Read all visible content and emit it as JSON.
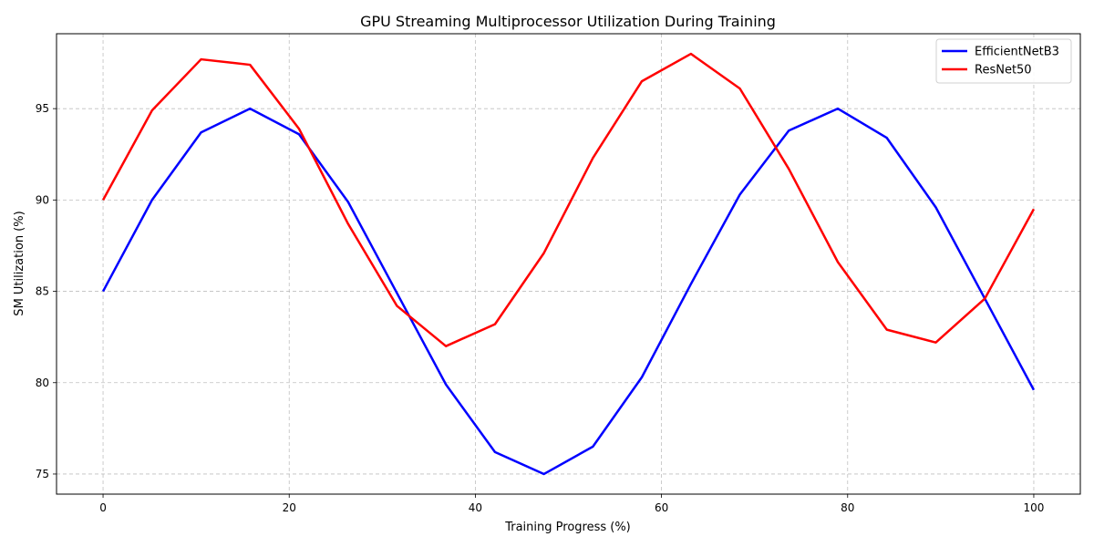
{
  "chart_data": {
    "type": "line",
    "title": "GPU Streaming Multiprocessor Utilization During Training",
    "xlabel": "Training Progress (%)",
    "ylabel": "SM Utilization (%)",
    "xlim": [
      -5,
      105
    ],
    "ylim": [
      73.9,
      99.1
    ],
    "xticks": [
      0,
      20,
      40,
      60,
      80,
      100
    ],
    "yticks": [
      75,
      80,
      85,
      90,
      95
    ],
    "grid": true,
    "legend_position": "top-right",
    "x": [
      0,
      5.26,
      10.53,
      15.79,
      21.05,
      26.32,
      31.58,
      36.84,
      42.11,
      47.37,
      52.63,
      57.89,
      63.16,
      68.42,
      73.68,
      78.95,
      84.21,
      89.47,
      94.74,
      100
    ],
    "series": [
      {
        "name": "EfficientNetB3",
        "color": "#0000ff",
        "values": [
          85.0,
          90.0,
          93.7,
          95.0,
          93.6,
          89.9,
          84.9,
          79.9,
          76.2,
          75.0,
          76.5,
          80.3,
          85.4,
          90.3,
          93.8,
          95.0,
          93.4,
          89.6,
          84.6,
          79.6
        ]
      },
      {
        "name": "ResNet50",
        "color": "#ff0000",
        "values": [
          90.0,
          94.9,
          97.7,
          97.4,
          93.9,
          88.7,
          84.2,
          82.0,
          83.2,
          87.1,
          92.3,
          96.5,
          98.0,
          96.1,
          91.7,
          86.6,
          82.9,
          82.2,
          84.6,
          89.5
        ]
      }
    ]
  }
}
